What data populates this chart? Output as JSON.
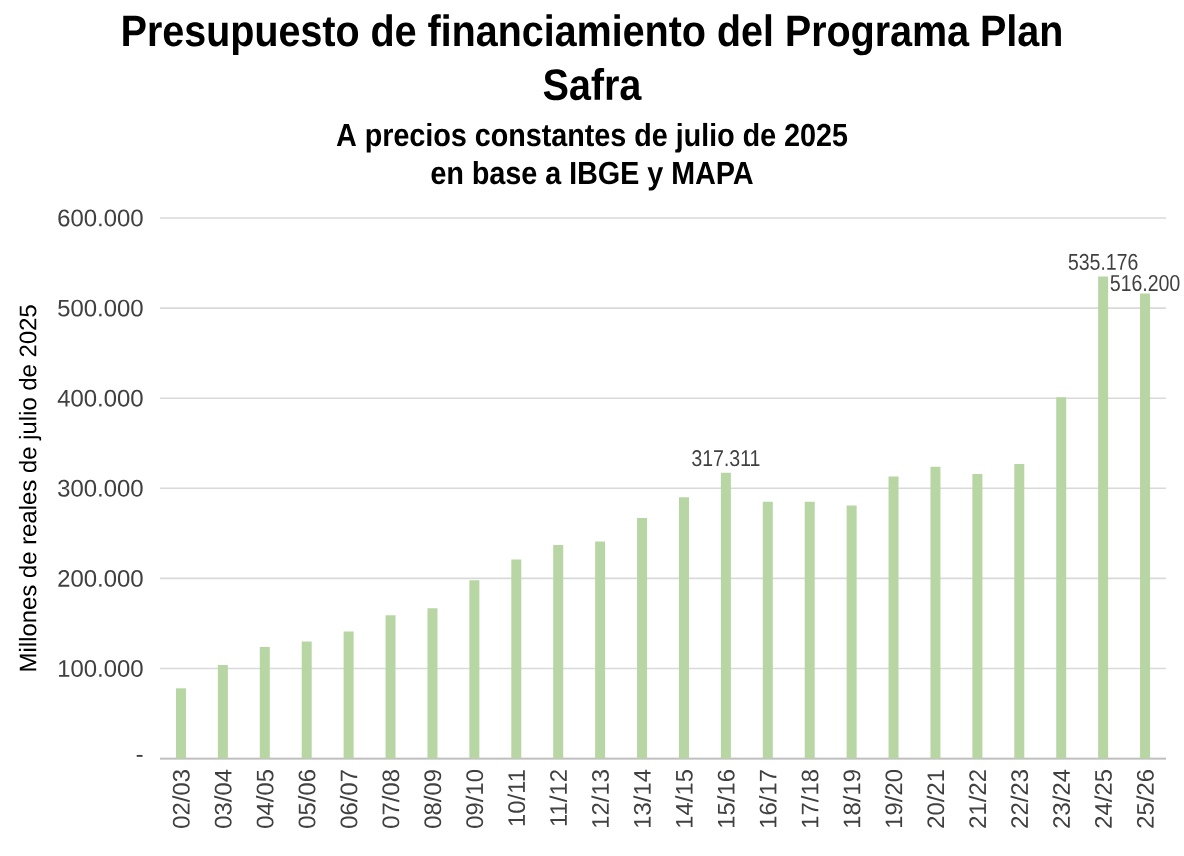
{
  "chart_data": {
    "type": "bar",
    "title": "Presupuesto de financiamiento del Programa Plan Safra",
    "subtitle": "A precios constantes de julio de 2025",
    "annotations": [
      "en base a IBGE y MAPA"
    ],
    "ylabel": "Millones de reales de julio de 2025",
    "categories": [
      "02/03",
      "03/04",
      "04/05",
      "05/06",
      "06/07",
      "07/08",
      "08/09",
      "09/10",
      "10/11",
      "11/12",
      "12/13",
      "13/14",
      "14/15",
      "15/16",
      "16/17",
      "17/18",
      "18/19",
      "19/20",
      "20/21",
      "21/22",
      "22/23",
      "23/24",
      "24/25",
      "25/26"
    ],
    "values": [
      78000,
      104000,
      124000,
      130000,
      141000,
      159000,
      167000,
      198000,
      221000,
      237000,
      241000,
      267000,
      290000,
      317311,
      285000,
      285000,
      281000,
      313000,
      324000,
      316000,
      327000,
      401000,
      535176,
      516200
    ],
    "value_labels": [
      null,
      null,
      null,
      null,
      null,
      null,
      null,
      null,
      null,
      null,
      null,
      null,
      null,
      "317.311",
      null,
      null,
      null,
      null,
      null,
      null,
      null,
      null,
      "535.176",
      "516.200"
    ],
    "color": "#b7d6a3",
    "ylim": [
      0,
      600000
    ],
    "yticks": [
      {
        "value": 0,
        "label": "-"
      },
      {
        "value": 100000,
        "label": "100.000"
      },
      {
        "value": 200000,
        "label": "200.000"
      },
      {
        "value": 300000,
        "label": "300.000"
      },
      {
        "value": 400000,
        "label": "400.000"
      },
      {
        "value": 500000,
        "label": "500.000"
      },
      {
        "value": 600000,
        "label": "600.000"
      }
    ],
    "grid": "y"
  }
}
